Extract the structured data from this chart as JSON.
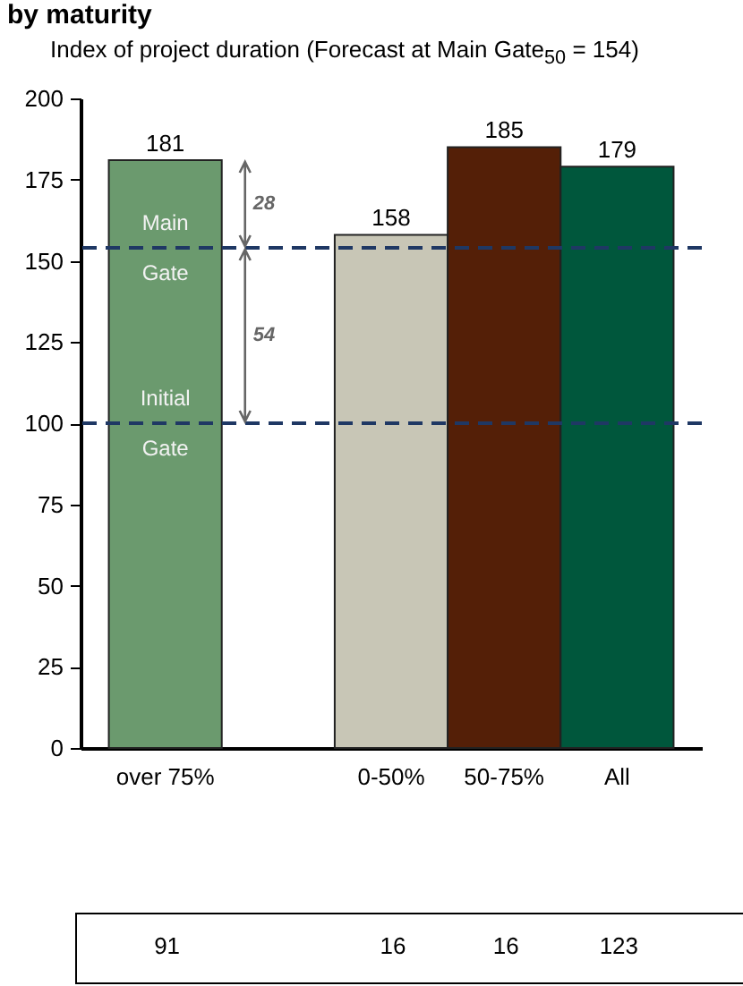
{
  "chart_data": {
    "type": "bar",
    "title": "by maturity",
    "subtitle": "Index of project duration (Forecast at Main Gate$_{50}$ = 154)",
    "categories": [
      "over 75%",
      null,
      "0-50%",
      "50-75%",
      "All"
    ],
    "values": [
      181,
      null,
      158,
      185,
      179
    ],
    "colors": [
      "#6b9a6e",
      "#6b9a6e",
      "#c8c6b6",
      "#541f07",
      "#00573c"
    ],
    "data_labels": true,
    "ylim": [
      0,
      200
    ],
    "yticks": [
      0,
      25,
      50,
      75,
      100,
      125,
      150,
      175,
      200
    ],
    "grid": false,
    "ref_lines": [
      {
        "axis": "y",
        "value": 154,
        "label": "Main Gate",
        "color": "#1f3864",
        "line_style": "dashed"
      },
      {
        "axis": "y",
        "value": 100,
        "label": "Initial Gate",
        "color": "#1f3864",
        "line_style": "dashed"
      }
    ],
    "annotations": [
      "28",
      "54",
      "91",
      "16",
      "16",
      "123"
    ]
  }
}
